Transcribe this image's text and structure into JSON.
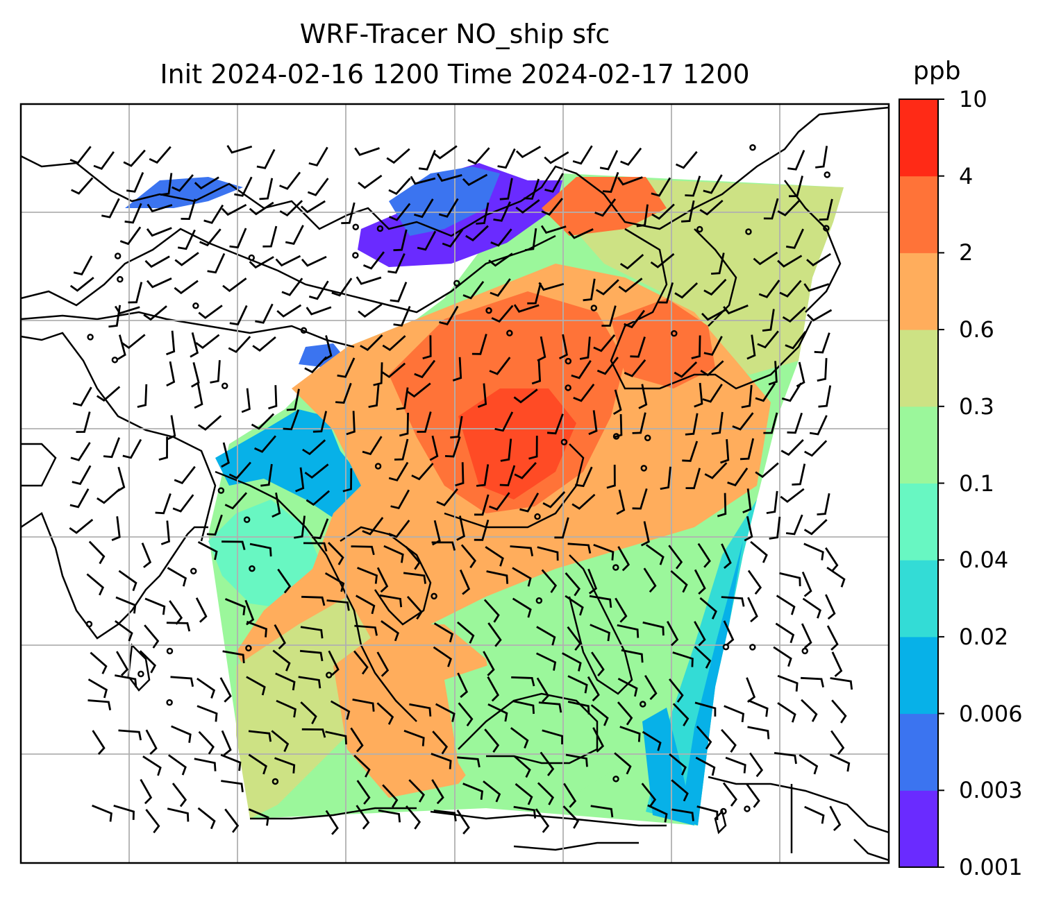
{
  "title": {
    "line1": "WRF-Tracer NO_ship sfc",
    "line2": "Init 2024-02-16 1200 Time 2024-02-17 1200"
  },
  "colorbar": {
    "unit": "ppb",
    "levels": [
      "0.001",
      "0.003",
      "0.006",
      "0.02",
      "0.04",
      "0.1",
      "0.3",
      "0.6",
      "2",
      "4",
      "10"
    ],
    "colors": [
      "#6a2bff",
      "#3b74f0",
      "#07b1e8",
      "#33dcd6",
      "#68f7c2",
      "#9bf79b",
      "#cde284",
      "#ffad5c",
      "#ff7338",
      "#ff2a16"
    ]
  },
  "map": {
    "projection": "lat-lon with gridlines",
    "gridline_color": "#b0b0b0",
    "coastline_color": "#000000",
    "wind_barbs": "black"
  }
}
